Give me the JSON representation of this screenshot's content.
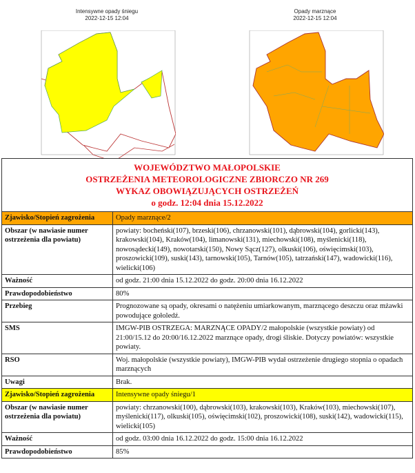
{
  "maps": [
    {
      "title": "Intensywne opady śniegu",
      "date": "2022-12-15 12:04",
      "fill": "#ffff00",
      "level": 1
    },
    {
      "title": "Opady marznące",
      "date": "2022-12-15 12:04",
      "fill": "#ffa500",
      "level": 2
    }
  ],
  "header": {
    "line1": "WOJEWÓDZTWO MAŁOPOLSKIE",
    "line2": "OSTRZEŻENIA METEOROLOGICZNE ZBIORCZO NR 269",
    "line3": "WYKAZ OBOWIĄZUJĄCYCH OSTRZEŻEŃ",
    "line4": "o godz. 12:04 dnia 15.12.2022"
  },
  "warnings": [
    {
      "color": "#ffa500",
      "rows": [
        {
          "label": "Zjawisko/Stopień zagrożenia",
          "value": "Opady marznące/2"
        },
        {
          "label": "Obszar (w nawiasie numer ostrzeżenia dla powiatu)",
          "value": "powiaty: bocheński(107), brzeski(106), chrzanowski(101), dąbrowski(104), gorlicki(143), krakowski(104), Kraków(104), limanowski(131), miechowski(108), myślenicki(118), nowosądecki(149), nowotarski(150), Nowy Sącz(127), olkuski(106), oświęcimski(103), proszowicki(109), suski(143), tarnowski(105), Tarnów(105), tatrzański(147), wadowicki(116), wielicki(106)"
        },
        {
          "label": "Ważność",
          "value": "od godz. 21:00 dnia 15.12.2022 do godz. 20:00 dnia 16.12.2022"
        },
        {
          "label": "Prawdopodobieństwo",
          "value": "80%"
        },
        {
          "label": "Przebieg",
          "value": "Prognozowane są opady, okresami o natężeniu umiarkowanym, marznącego deszczu oraz mżawki powodujące gołoledź."
        },
        {
          "label": "SMS",
          "value": "IMGW-PIB OSTRZEGA: MARZNĄCE OPADY/2 małopolskie (wszystkie powiaty) od 21:00/15.12 do 20:00/16.12.2022 marznące opady, drogi śliskie.  Dotyczy powiatów: wszystkie powiaty."
        },
        {
          "label": "RSO",
          "value": "Woj. małopolskie (wszystkie powiaty), IMGW-PIB wydał ostrzeżenie drugiego stopnia o opadach marznących"
        },
        {
          "label": "Uwagi",
          "value": "Brak."
        }
      ]
    },
    {
      "color": "#ffff00",
      "rows": [
        {
          "label": "Zjawisko/Stopień zagrożenia",
          "value": "Intensywne opady śniegu/1"
        },
        {
          "label": "Obszar (w nawiasie numer ostrzeżenia dla powiatu)",
          "value": "powiaty: chrzanowski(100), dąbrowski(103), krakowski(103), Kraków(103), miechowski(107), myślenicki(117),  olkuski(105), oświęcimski(102),  proszowicki(108), suski(142), wadowicki(115), wielicki(105)"
        },
        {
          "label": "Ważność",
          "value": "od godz. 03:00 dnia 16.12.2022 do godz. 15:00 dnia 16.12.2022"
        },
        {
          "label": "Prawdopodobieństwo",
          "value": "85%"
        }
      ]
    }
  ]
}
